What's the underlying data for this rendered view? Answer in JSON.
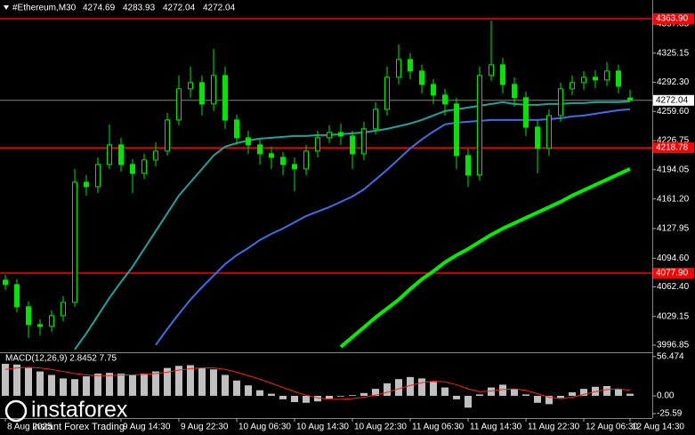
{
  "chart_data": [
    {
      "type": "candlestick",
      "title": "#Ethereum,M30",
      "color": "#00e600",
      "categories": [
        "8 Aug 2025",
        null,
        null,
        null,
        null,
        null,
        null,
        null,
        null,
        null,
        "9 Aug 14:30",
        null,
        null,
        null,
        null,
        "9 Aug 22:30",
        null,
        null,
        null,
        null,
        "10 Aug 06:30",
        null,
        null,
        null,
        null,
        "10 Aug 14:30",
        null,
        null,
        null,
        null,
        "10 Aug 22:30",
        null,
        null,
        null,
        null,
        "11 Aug 06:30",
        null,
        null,
        null,
        null,
        "11 Aug 14:30",
        null,
        null,
        null,
        null,
        "11 Aug 22:30",
        null,
        null,
        null,
        null,
        "12 Aug 06:30",
        null,
        null,
        null,
        "12 Aug 14:30"
      ],
      "open": [
        4070,
        4065,
        4040,
        4020,
        4018,
        4030,
        4045,
        4180,
        4175,
        4200,
        4222,
        4200,
        4190,
        4205,
        4215,
        4250,
        4285,
        4292,
        4268,
        4300,
        4250,
        4230,
        4222,
        4212,
        4208,
        4200,
        4195,
        4215,
        4230,
        4236,
        4232,
        4212,
        4240,
        4262,
        4298,
        4318,
        4305,
        4290,
        4278,
        4268,
        4210,
        4188,
        4300,
        4312,
        4290,
        4275,
        4242,
        4218,
        4255,
        4285,
        4292,
        4298,
        4295,
        4305,
        4274.69
      ],
      "high": [
        4076,
        4071,
        4046,
        4026,
        4036,
        4052,
        4195,
        4188,
        4208,
        4245,
        4230,
        4206,
        4212,
        4225,
        4258,
        4300,
        4310,
        4300,
        4330,
        4310,
        4256,
        4238,
        4228,
        4220,
        4214,
        4208,
        4222,
        4238,
        4244,
        4246,
        4238,
        4248,
        4270,
        4310,
        4335,
        4325,
        4312,
        4296,
        4285,
        4275,
        4218,
        4310,
        4362,
        4320,
        4298,
        4282,
        4250,
        4262,
        4292,
        4300,
        4305,
        4306,
        4315,
        4312,
        4283.93
      ],
      "low": [
        4059,
        4034,
        4005,
        4008,
        4012,
        4024,
        4040,
        4165,
        4168,
        4195,
        4192,
        4168,
        4184,
        4198,
        4210,
        4244,
        4275,
        4255,
        4260,
        4240,
        4222,
        4212,
        4200,
        4195,
        4188,
        4170,
        4188,
        4208,
        4224,
        4222,
        4195,
        4205,
        4234,
        4255,
        4290,
        4296,
        4280,
        4268,
        4255,
        4195,
        4175,
        4182,
        4294,
        4280,
        4265,
        4232,
        4190,
        4210,
        4248,
        4278,
        4284,
        4286,
        4288,
        4280,
        4272.04
      ],
      "close": [
        4065,
        4040,
        4020,
        4018,
        4030,
        4045,
        4180,
        4175,
        4200,
        4222,
        4200,
        4190,
        4205,
        4215,
        4250,
        4285,
        4292,
        4268,
        4300,
        4250,
        4230,
        4222,
        4212,
        4208,
        4200,
        4195,
        4215,
        4230,
        4236,
        4232,
        4212,
        4240,
        4262,
        4298,
        4318,
        4305,
        4290,
        4278,
        4268,
        4210,
        4188,
        4300,
        4312,
        4290,
        4275,
        4242,
        4218,
        4255,
        4285,
        4292,
        4298,
        4295,
        4305,
        4288,
        4272.04
      ],
      "series": [
        {
          "color": "#1fa39a",
          "values": [
            null,
            null,
            null,
            null,
            null,
            null,
            3992,
            4010,
            4030,
            4050,
            4068,
            4085,
            4105,
            4125,
            4145,
            4165,
            4180,
            4195,
            4210,
            4220,
            4224,
            4227,
            4229,
            4230,
            4231,
            4232,
            4232,
            4233,
            4233,
            4234,
            4235,
            4236,
            4238,
            4240,
            4243,
            4246,
            4250,
            4255,
            4260,
            4262,
            4264,
            4266,
            4268,
            4270,
            4268,
            4267,
            4267,
            4268,
            4268,
            4269,
            4269,
            4270,
            4270,
            4270,
            4271
          ]
        },
        {
          "color": "#3f6fe6",
          "values": [
            null,
            null,
            null,
            null,
            null,
            null,
            null,
            null,
            null,
            null,
            null,
            null,
            null,
            3997,
            4015,
            4032,
            4048,
            4062,
            4075,
            4088,
            4098,
            4106,
            4115,
            4122,
            4128,
            4135,
            4142,
            4147,
            4152,
            4158,
            4164,
            4172,
            4183,
            4194,
            4206,
            4218,
            4228,
            4237,
            4245,
            4247,
            4248,
            4249,
            4250,
            4250,
            4250,
            4250,
            4250,
            4251,
            4252,
            4254,
            4255,
            4257,
            4259,
            4261,
            4262
          ]
        },
        {
          "color": "#00ee00",
          "values": [
            null,
            null,
            null,
            null,
            null,
            null,
            null,
            null,
            null,
            null,
            null,
            null,
            null,
            null,
            null,
            null,
            null,
            null,
            null,
            null,
            null,
            null,
            null,
            null,
            null,
            null,
            null,
            null,
            null,
            3995,
            4006,
            4017,
            4028,
            4038,
            4048,
            4060,
            4071,
            4080,
            4090,
            4098,
            4105,
            4113,
            4121,
            4128,
            4134,
            4140,
            4146,
            4152,
            4158,
            4165,
            4171,
            4177,
            4183,
            4189,
            4195
          ]
        }
      ],
      "hlines": [
        {
          "value": 4363.9,
          "label": "4363.90"
        },
        {
          "value": 4218.78,
          "label": "4218.78"
        },
        {
          "value": 4077.9,
          "label": "4077.90"
        }
      ],
      "hline_color": "#ff0000",
      "ylim": [
        3989.85,
        4384.85
      ],
      "yticks": [
        4357.85,
        4325.15,
        {
          "value": 4292.3,
          "label": "4292.30"
        },
        {
          "value": 4259.6,
          "label": "4259.60"
        },
        4226.75,
        4194.05,
        {
          "value": 4161.2,
          "label": "4161.20"
        },
        4127.95,
        {
          "value": 4094.6,
          "label": "4094.60"
        },
        {
          "value": 4062.4,
          "label": "4062.40"
        },
        4029.15,
        3996.85
      ]
    },
    {
      "type": "macd",
      "title": "MACD(12,26,9) 2.8452 7.75",
      "series": [
        {
          "color": "#c0c0c0",
          "values": [
            46,
            45,
            40,
            35,
            30,
            25,
            24,
            28,
            32,
            33,
            32,
            30,
            32,
            35,
            40,
            43,
            44,
            40,
            38,
            30,
            22,
            15,
            8,
            3,
            -5,
            -9,
            -10,
            -8,
            -4,
            -1,
            1,
            4,
            10,
            18,
            24,
            27,
            25,
            20,
            12,
            -5,
            -17,
            2,
            12,
            16,
            10,
            2,
            -10,
            -12,
            -3,
            5,
            10,
            13,
            14,
            10,
            3
          ]
        },
        {
          "color": "#ff2020",
          "values": [
            38,
            40,
            41,
            40,
            38,
            35,
            32,
            30,
            29,
            29,
            30,
            30,
            31,
            32,
            34,
            37,
            39,
            40,
            40,
            38,
            34,
            29,
            24,
            18,
            12,
            6,
            1,
            -3,
            -5,
            -5,
            -4,
            -2,
            1,
            5,
            10,
            15,
            19,
            21,
            20,
            16,
            10,
            6,
            7,
            9,
            10,
            8,
            3,
            -2,
            -4,
            -2,
            2,
            6,
            9,
            10,
            8
          ]
        }
      ],
      "ylim": [
        -32,
        60
      ],
      "yticks": [
        56.474,
        {
          "value": 0,
          "label": "0.00"
        },
        -25.59
      ]
    }
  ],
  "watermark": {
    "brand": "instaforex",
    "tagline": "Instant Forex Trading"
  }
}
